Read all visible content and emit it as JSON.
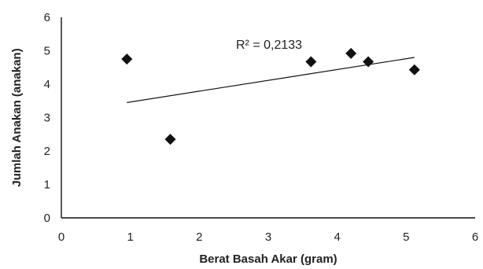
{
  "chart_data": {
    "type": "scatter",
    "xlabel": "Berat Basah Akar (gram)",
    "ylabel": "Jumlah Anakan (anakan)",
    "xlim": [
      0,
      6
    ],
    "ylim": [
      0,
      6
    ],
    "x_ticks": [
      0,
      1,
      2,
      3,
      4,
      5,
      6
    ],
    "y_ticks": [
      0,
      1,
      2,
      3,
      4,
      5,
      6
    ],
    "grid": false,
    "marker": "diamond",
    "series": [
      {
        "x": [
          0.95,
          1.58,
          3.62,
          4.2,
          4.45,
          5.12
        ],
        "y": [
          4.75,
          2.35,
          4.67,
          4.92,
          4.67,
          4.43
        ]
      }
    ],
    "trendline": {
      "type": "linear",
      "x_range": [
        0.95,
        5.12
      ],
      "y_at_ends": [
        3.45,
        4.8
      ]
    },
    "annotation": "R² = 0,2133",
    "colors": {
      "marker": "#111111",
      "axis": "#111111",
      "trendline": "#111111"
    }
  }
}
